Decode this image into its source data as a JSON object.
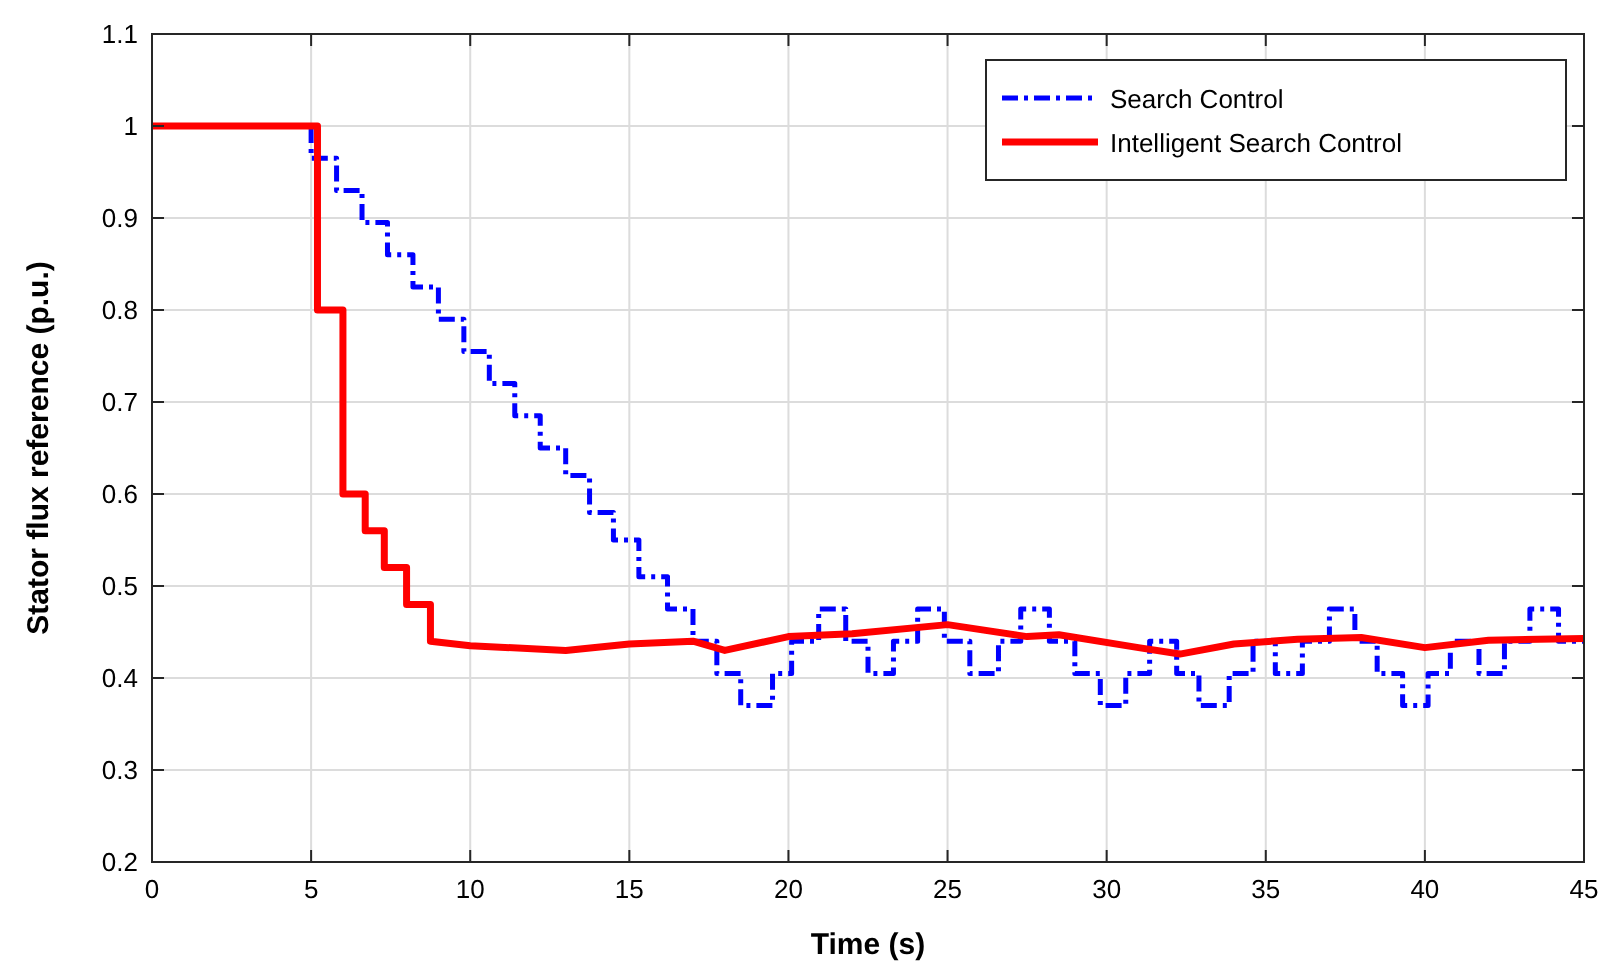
{
  "chart_data": {
    "type": "line",
    "xlabel": "Time (s)",
    "ylabel": "Stator flux reference (p.u.)",
    "xlim": [
      0,
      45
    ],
    "xticks": [
      0,
      5,
      10,
      15,
      20,
      25,
      30,
      35,
      40,
      45
    ],
    "ylim": [
      0.2,
      1.1
    ],
    "yticks": [
      0.2,
      0.3,
      0.4,
      0.5,
      0.6,
      0.7,
      0.8,
      0.9,
      1,
      1.1
    ],
    "grid": true,
    "legend": "top right",
    "series": [
      {
        "name": "Search Control",
        "type": "step",
        "color": "#0000ff",
        "line_style": "dashed",
        "x": [
          0,
          5.0,
          5.8,
          6.6,
          7.4,
          8.2,
          9.0,
          9.8,
          10.6,
          11.4,
          12.2,
          13.0,
          13.75,
          14.5,
          15.3,
          16.2,
          17.0,
          17.75,
          18.5,
          19.5,
          20.1,
          20.95,
          21.8,
          22.5,
          23.3,
          24.06,
          24.9,
          25.7,
          26.6,
          27.3,
          28.2,
          29.0,
          29.8,
          30.6,
          31.35,
          32.2,
          32.9,
          33.85,
          34.6,
          35.3,
          36.15,
          37.0,
          37.8,
          38.5,
          39.3,
          40.1,
          40.8,
          41.7,
          42.5,
          43.3,
          44.2,
          45
        ],
        "values": [
          1.0,
          0.965,
          0.93,
          0.895,
          0.86,
          0.825,
          0.79,
          0.755,
          0.72,
          0.685,
          0.65,
          0.62,
          0.58,
          0.55,
          0.51,
          0.475,
          0.44,
          0.405,
          0.37,
          0.405,
          0.44,
          0.475,
          0.44,
          0.405,
          0.44,
          0.475,
          0.44,
          0.405,
          0.44,
          0.475,
          0.44,
          0.405,
          0.37,
          0.405,
          0.44,
          0.405,
          0.37,
          0.405,
          0.44,
          0.405,
          0.44,
          0.475,
          0.44,
          0.405,
          0.37,
          0.405,
          0.44,
          0.405,
          0.44,
          0.475,
          0.44,
          0.44
        ]
      },
      {
        "name": "Intelligent Search Control",
        "color": "#ff0000",
        "line_style": "solid",
        "x": [
          0,
          5.2,
          5.2,
          6.0,
          6.0,
          6.7,
          6.7,
          7.3,
          7.3,
          8.0,
          8.0,
          8.75,
          8.75,
          10,
          13,
          15,
          17,
          18,
          20,
          22,
          25,
          27.5,
          28.5,
          31,
          32.3,
          34,
          36,
          38,
          40,
          42,
          45
        ],
        "values": [
          1,
          1,
          0.8,
          0.8,
          0.6,
          0.6,
          0.56,
          0.56,
          0.52,
          0.52,
          0.48,
          0.48,
          0.44,
          0.435,
          0.43,
          0.437,
          0.44,
          0.43,
          0.445,
          0.448,
          0.458,
          0.445,
          0.447,
          0.433,
          0.426,
          0.437,
          0.442,
          0.444,
          0.433,
          0.441,
          0.443
        ]
      }
    ]
  }
}
